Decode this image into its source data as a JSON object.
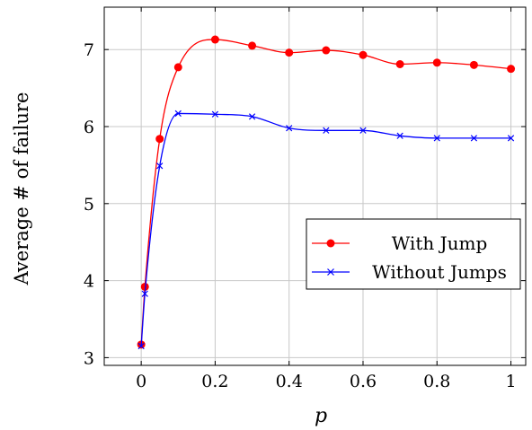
{
  "chart_data": {
    "type": "line",
    "xlabel": "p",
    "ylabel": "Average # of failure",
    "xlim": [
      -0.1,
      1.04
    ],
    "ylim": [
      2.9,
      7.55
    ],
    "xticks": [
      0,
      0.2,
      0.4,
      0.6,
      0.8,
      1
    ],
    "xtick_labels": [
      "0",
      "0.2",
      "0.4",
      "0.6",
      "0.8",
      "1"
    ],
    "yticks": [
      3,
      4,
      5,
      6,
      7
    ],
    "ytick_labels": [
      "3",
      "4",
      "5",
      "6",
      "7"
    ],
    "grid": true,
    "legend_position": "center-right",
    "series": [
      {
        "name": "With Jump",
        "color": "#ff0000",
        "marker": "circle",
        "x": [
          0,
          0.01,
          0.05,
          0.1,
          0.2,
          0.3,
          0.4,
          0.5,
          0.6,
          0.7,
          0.8,
          0.9,
          1
        ],
        "y": [
          3.17,
          3.92,
          5.84,
          6.77,
          7.13,
          7.05,
          6.96,
          6.99,
          6.93,
          6.81,
          6.83,
          6.8,
          6.75
        ]
      },
      {
        "name": "Without Jumps",
        "color": "#0000ff",
        "marker": "x",
        "x": [
          0,
          0.01,
          0.05,
          0.1,
          0.2,
          0.3,
          0.4,
          0.5,
          0.6,
          0.7,
          0.8,
          0.9,
          1
        ],
        "y": [
          3.15,
          3.83,
          5.49,
          6.17,
          6.16,
          6.13,
          5.98,
          5.95,
          5.95,
          5.88,
          5.85,
          5.85,
          5.85
        ]
      }
    ]
  }
}
